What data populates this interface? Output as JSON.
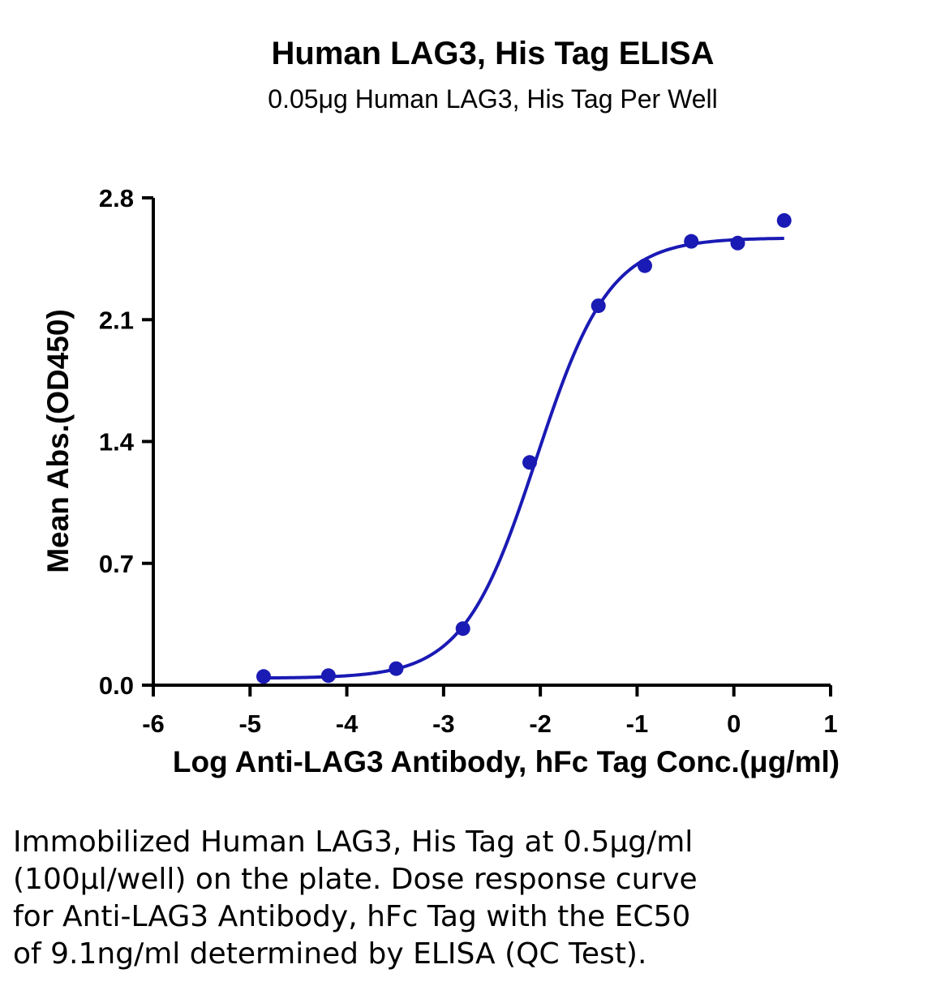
{
  "chart_data": {
    "type": "scatter",
    "title": "Human LAG3, His Tag ELISA",
    "subtitle": "0.05μg Human LAG3, His Tag Per Well",
    "xlabel": "Log Anti-LAG3 Antibody, hFc Tag Conc.(μg/ml)",
    "ylabel": "Mean Abs.(OD450)",
    "xlim": [
      -6,
      1
    ],
    "ylim": [
      0,
      2.8
    ],
    "x_ticks": [
      "-6",
      "-5",
      "-4",
      "-3",
      "-2",
      "-1",
      "0",
      "1"
    ],
    "y_ticks": [
      "0.0",
      "0.7",
      "1.4",
      "2.1",
      "2.8"
    ],
    "grid": false,
    "color": "#1a1ab4",
    "series": [
      {
        "x": [
          -4.86,
          -4.19,
          -3.49,
          -2.8,
          -2.11,
          -1.4,
          -0.92,
          -0.44,
          0.04,
          0.52
        ],
        "y": [
          0.05,
          0.055,
          0.095,
          0.325,
          1.28,
          2.18,
          2.41,
          2.55,
          2.54,
          2.67
        ]
      }
    ],
    "fit_curve": {
      "model": "4PL",
      "bottom": 0.04,
      "top": 2.57,
      "log_ec50": -2.04,
      "hill_slope": 1.15,
      "x_range": [
        -4.86,
        0.52
      ]
    }
  },
  "caption_lines": [
    "Immobilized Human LAG3, His Tag at 0.5μg/ml",
    "(100μl/well) on the plate. Dose response curve",
    "for Anti-LAG3 Antibody, hFc Tag with the EC50",
    "of 9.1ng/ml determined by ELISA (QC Test)."
  ]
}
